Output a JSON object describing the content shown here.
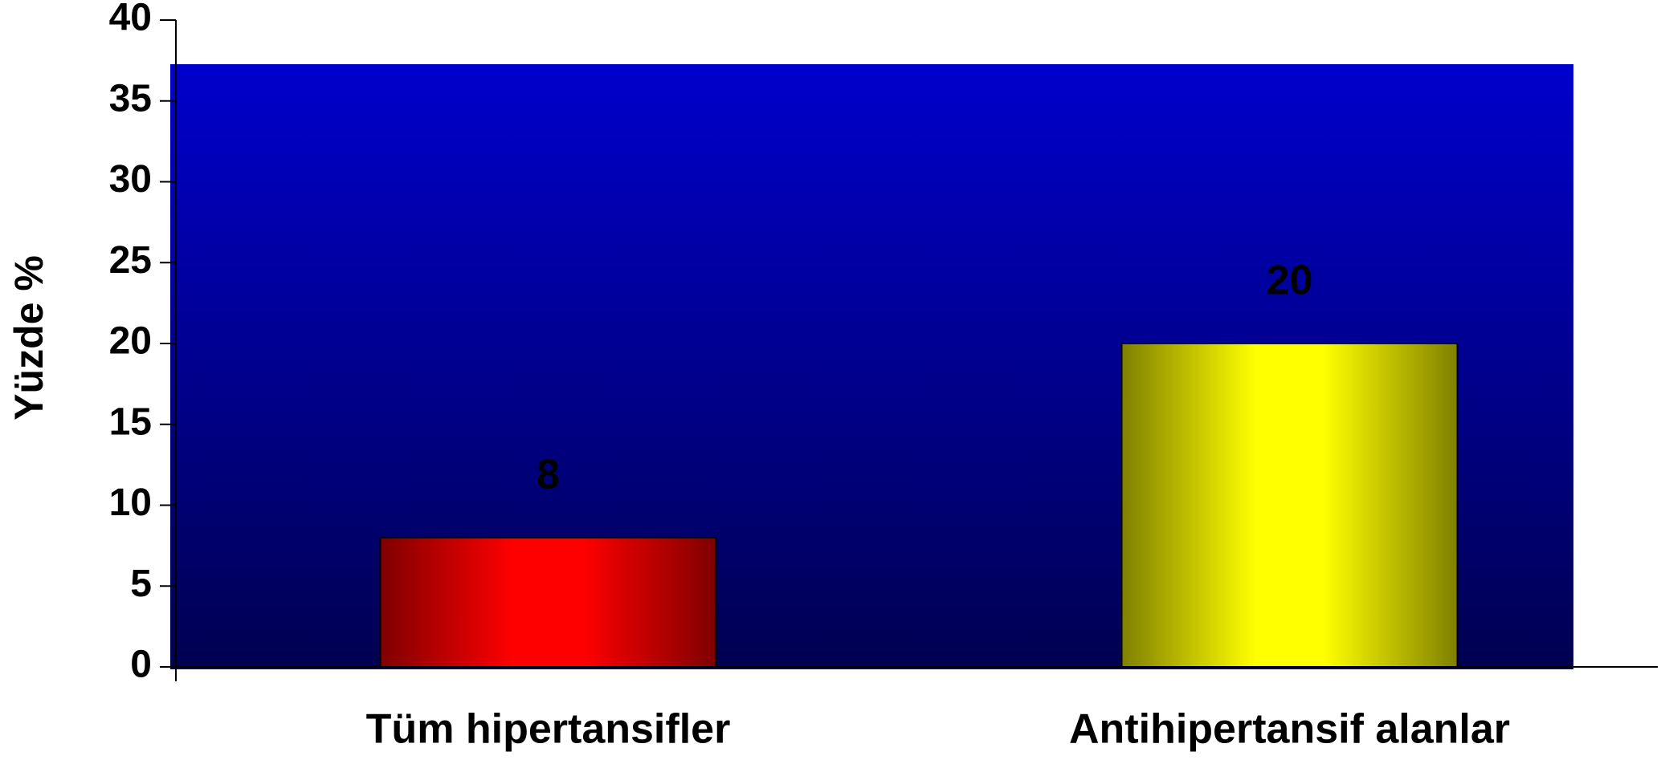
{
  "chart_data": {
    "type": "bar",
    "ylabel": "Yüzde %",
    "categories": [
      "Tüm hipertansifler",
      "Antihipertansif alanlar"
    ],
    "values": [
      8,
      20
    ],
    "colors": [
      "#ff0000",
      "#ffff00"
    ],
    "ylim": [
      0,
      40
    ],
    "yticks": [
      0,
      5,
      10,
      15,
      20,
      25,
      30,
      35,
      40
    ],
    "background": [
      "#0000cc",
      "#000050"
    ]
  }
}
